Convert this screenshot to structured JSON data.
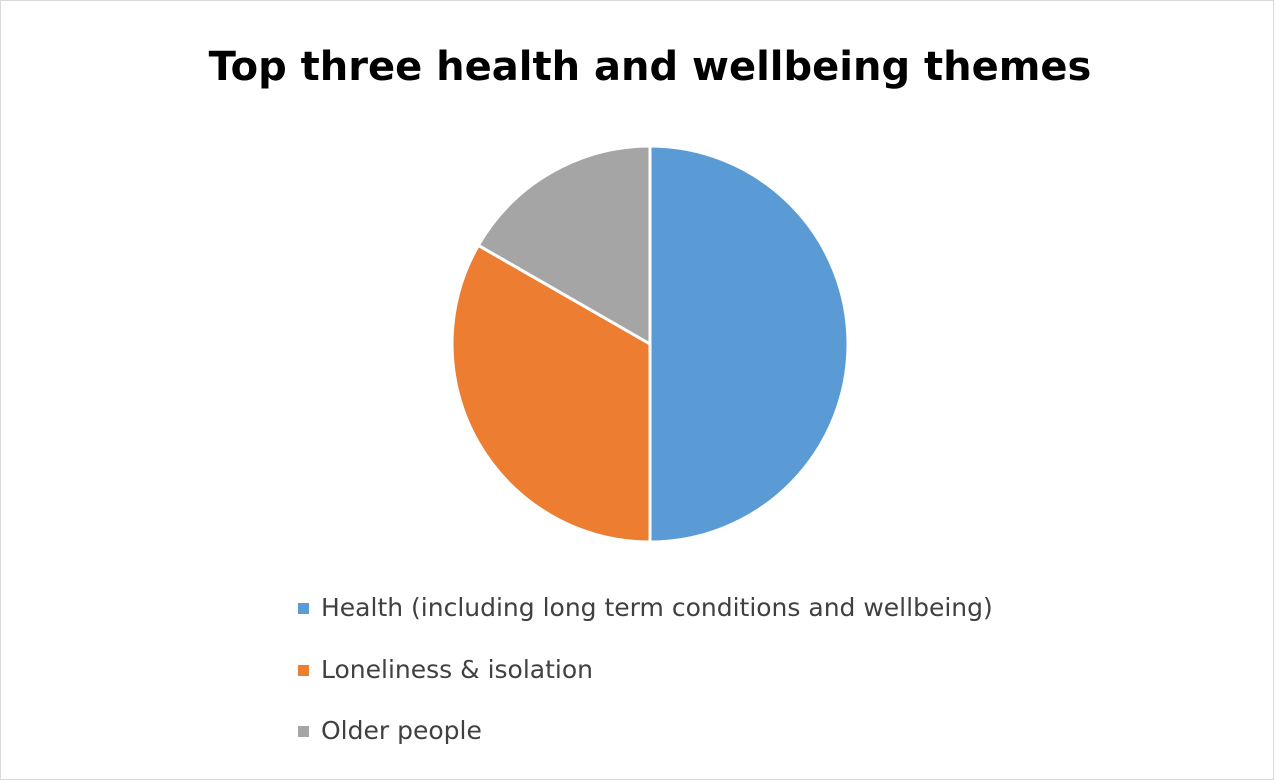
{
  "chart_data": {
    "type": "pie",
    "title": "Top three health and wellbeing themes",
    "categories": [
      "Health (including long term conditions and wellbeing)",
      "Loneliness & isolation",
      "Older people"
    ],
    "values": [
      50,
      33.3,
      16.7
    ],
    "colors": [
      "#5B9BD5",
      "#ED7D31",
      "#A5A5A5"
    ],
    "start_angle_deg": 0,
    "direction": "clockwise",
    "slice_border_color": "#ffffff",
    "legend": "bottom"
  }
}
